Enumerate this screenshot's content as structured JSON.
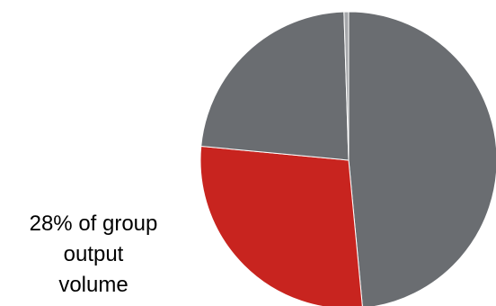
{
  "chart_data": {
    "type": "pie",
    "title": "",
    "slices": [
      {
        "value": 48.5,
        "color": "#6a6d71"
      },
      {
        "value": 28.0,
        "color": "#c8241f"
      },
      {
        "value": 23.0,
        "color": "#6a6d71"
      },
      {
        "value": 0.5,
        "color": "#a5a7aa"
      }
    ],
    "start_angle_deg": 0,
    "direction": "clockwise",
    "highlighted_slice": 1,
    "annotation": {
      "lines": [
        "28% of group",
        "output",
        "volume"
      ]
    },
    "legend": "none"
  }
}
